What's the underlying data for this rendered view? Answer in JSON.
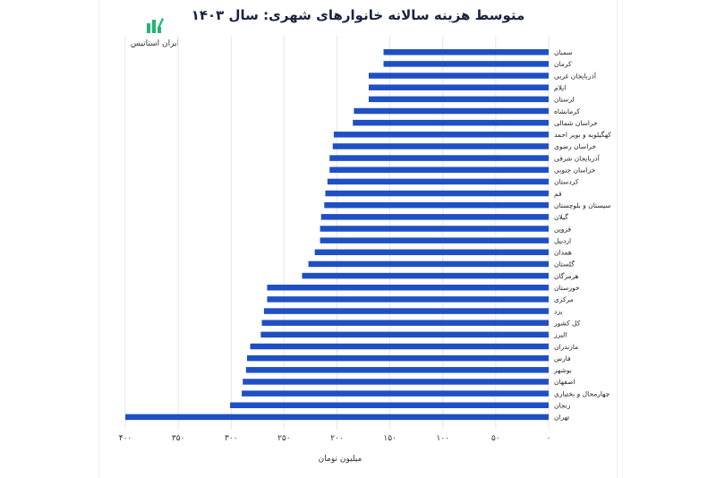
{
  "logo": {
    "text": "ایران استاتیس",
    "icon": "bar-chart-logo-icon",
    "color": "#1fb574"
  },
  "chart_data": {
    "type": "bar",
    "orientation": "horizontal",
    "title": "متوسط هزینه سالانه خانوارهای شهری: سال ۱۴۰۳",
    "xlabel": "میلیون تومان",
    "ylabel": "",
    "xlim": [
      0,
      400
    ],
    "x_reversed": true,
    "grid": true,
    "bar_color": "#1f4fc4",
    "categories": [
      "سمنان",
      "کرمان",
      "آذربایجان غربی",
      "ایلام",
      "لرستان",
      "کرمانشاه",
      "خراسان شمالی",
      "کهگیلویه و بویر احمد",
      "خراسان رضوی",
      "آذربایجان شرقی",
      "خراسان جنوبی",
      "کردستان",
      "قم",
      "سیستان و بلوچستان",
      "گیلان",
      "قزوین",
      "اردبیل",
      "همدان",
      "گلستان",
      "هرمزگان",
      "خوزستان",
      "مرکزی",
      "یزد",
      "کل کشور",
      "البرز",
      "مازندران",
      "فارس",
      "بوشهر",
      "اصفهان",
      "چهارمحال و بختیاری",
      "زنجان",
      "تهران"
    ],
    "values": [
      156,
      156,
      170,
      170,
      170,
      184,
      185,
      203,
      204,
      207,
      207,
      209,
      211,
      212,
      215,
      216,
      216,
      221,
      227,
      233,
      266,
      266,
      269,
      271,
      272,
      282,
      285,
      286,
      289,
      290,
      301,
      400
    ],
    "tick_labels": [
      "۴۰۰",
      "۳۵۰",
      "۳۰۰",
      "۲۵۰",
      "۲۰۰",
      "۱۵۰",
      "۱۰۰",
      "۵۰",
      "۰"
    ],
    "tick_values": [
      400,
      350,
      300,
      250,
      200,
      150,
      100,
      50,
      0
    ]
  }
}
